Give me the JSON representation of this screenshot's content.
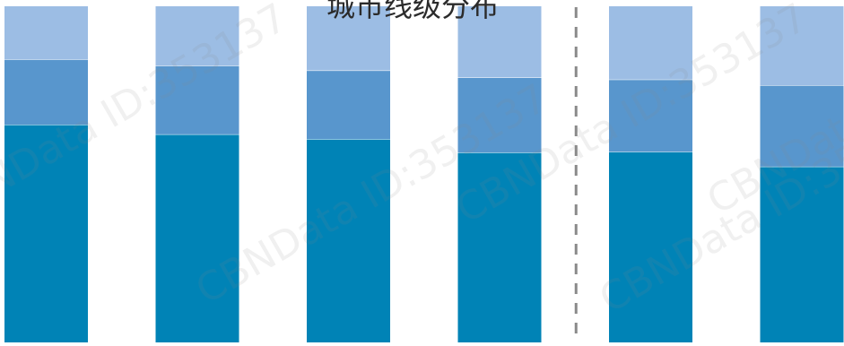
{
  "chart_data": {
    "type": "bar",
    "stacked": true,
    "title": "城市线级分布",
    "xlabel": "",
    "ylabel": "",
    "categories": [
      "",
      "",
      "",
      "",
      "",
      ""
    ],
    "ylim": [
      0,
      100
    ],
    "grid": false,
    "legend": "none",
    "series": [
      {
        "values": [
          64.8,
          61.9,
          60.5,
          56.5,
          56.7,
          52.3
        ]
      },
      {
        "values": [
          19.4,
          20.4,
          20.4,
          22.3,
          21.5,
          24.2
        ]
      },
      {
        "values": [
          15.8,
          17.7,
          19.1,
          21.2,
          21.8,
          23.5
        ]
      }
    ],
    "colors": [
      "#0083B6",
      "#5896CD",
      "#9CBDE4"
    ],
    "divider_after_index": 3,
    "divider_color": "#8a8a8a"
  },
  "watermark": {
    "text": "CBNData ID:353137"
  }
}
